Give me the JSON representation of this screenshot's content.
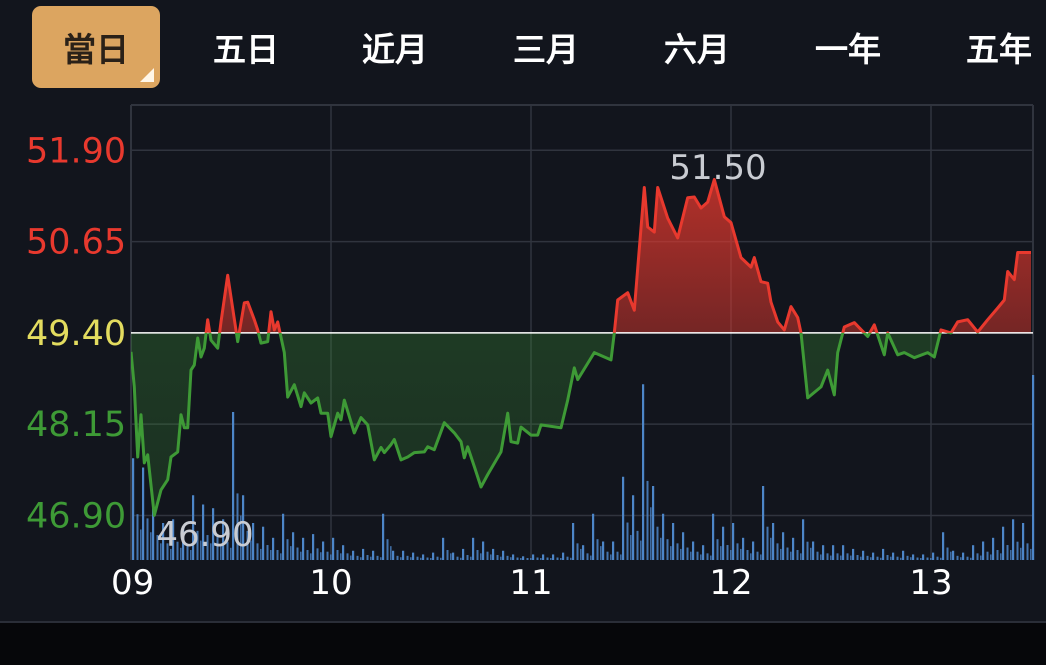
{
  "tabs": [
    {
      "label": "當日",
      "active": true
    },
    {
      "label": "五日",
      "active": false
    },
    {
      "label": "近月",
      "active": false
    },
    {
      "label": "三月",
      "active": false
    },
    {
      "label": "六月",
      "active": false
    },
    {
      "label": "一年",
      "active": false
    },
    {
      "label": "五年",
      "active": false
    }
  ],
  "colors": {
    "up": "#e8392e",
    "down": "#3e9a36",
    "reference": "#e3dc5f",
    "volume": "#4d86c8",
    "active_tab": "#dca560",
    "background": "#12151d",
    "grid": "#30343e"
  },
  "chart_data": {
    "type": "line",
    "x_axis": {
      "ticks": [
        "09",
        "10",
        "11",
        "12",
        "13"
      ],
      "range": [
        "09:00",
        "13:30"
      ]
    },
    "y_axis": {
      "ticks": [
        "51.90",
        "50.65",
        "49.40",
        "48.15",
        "46.90"
      ],
      "range": [
        46.29,
        52.52
      ],
      "reference": 49.4
    },
    "grid": true,
    "high_label": "51.50",
    "low_label": "46.90",
    "price": [
      [
        "09:00",
        49.14
      ],
      [
        "09:01",
        48.66
      ],
      [
        "09:02",
        47.7
      ],
      [
        "09:03",
        48.28
      ],
      [
        "09:04",
        47.62
      ],
      [
        "09:05",
        47.73
      ],
      [
        "09:07",
        46.9
      ],
      [
        "09:09",
        47.25
      ],
      [
        "09:11",
        47.39
      ],
      [
        "09:12",
        47.7
      ],
      [
        "09:14",
        47.77
      ],
      [
        "09:15",
        48.28
      ],
      [
        "09:16",
        48.1
      ],
      [
        "09:17",
        48.1
      ],
      [
        "09:18",
        48.89
      ],
      [
        "09:19",
        48.96
      ],
      [
        "09:20",
        49.33
      ],
      [
        "09:21",
        49.07
      ],
      [
        "09:22",
        49.19
      ],
      [
        "09:23",
        49.58
      ],
      [
        "09:24",
        49.3
      ],
      [
        "09:26",
        49.19
      ],
      [
        "09:27",
        49.55
      ],
      [
        "09:29",
        50.19
      ],
      [
        "09:32",
        49.28
      ],
      [
        "09:34",
        49.81
      ],
      [
        "09:35",
        49.82
      ],
      [
        "09:37",
        49.58
      ],
      [
        "09:38",
        49.44
      ],
      [
        "09:39",
        49.26
      ],
      [
        "09:41",
        49.28
      ],
      [
        "09:42",
        49.69
      ],
      [
        "09:43",
        49.44
      ],
      [
        "09:44",
        49.55
      ],
      [
        "09:46",
        49.13
      ],
      [
        "09:47",
        48.52
      ],
      [
        "09:49",
        48.69
      ],
      [
        "09:51",
        48.39
      ],
      [
        "09:52",
        48.58
      ],
      [
        "09:54",
        48.44
      ],
      [
        "09:56",
        48.51
      ],
      [
        "09:57",
        48.3
      ],
      [
        "09:59",
        48.3
      ],
      [
        "10:00",
        47.98
      ],
      [
        "10:02",
        48.3
      ],
      [
        "10:03",
        48.21
      ],
      [
        "10:04",
        48.48
      ],
      [
        "10:07",
        48.03
      ],
      [
        "10:09",
        48.24
      ],
      [
        "10:11",
        48.14
      ],
      [
        "10:13",
        47.66
      ],
      [
        "10:15",
        47.83
      ],
      [
        "10:16",
        47.76
      ],
      [
        "10:18",
        47.87
      ],
      [
        "10:19",
        47.94
      ],
      [
        "10:21",
        47.66
      ],
      [
        "10:23",
        47.7
      ],
      [
        "10:25",
        47.76
      ],
      [
        "10:28",
        47.77
      ],
      [
        "10:29",
        47.84
      ],
      [
        "10:31",
        47.8
      ],
      [
        "10:34",
        48.17
      ],
      [
        "10:37",
        48.03
      ],
      [
        "10:39",
        47.91
      ],
      [
        "10:40",
        47.69
      ],
      [
        "10:41",
        47.84
      ],
      [
        "10:43",
        47.57
      ],
      [
        "10:45",
        47.29
      ],
      [
        "10:47",
        47.46
      ],
      [
        "10:51",
        47.77
      ],
      [
        "10:53",
        48.3
      ],
      [
        "10:54",
        47.91
      ],
      [
        "10:56",
        47.89
      ],
      [
        "10:57",
        48.11
      ],
      [
        "11:00",
        48.0
      ],
      [
        "11:02",
        48.0
      ],
      [
        "11:03",
        48.14
      ],
      [
        "11:09",
        48.1
      ],
      [
        "11:11",
        48.48
      ],
      [
        "11:13",
        48.92
      ],
      [
        "11:14",
        48.76
      ],
      [
        "11:19",
        49.13
      ],
      [
        "11:24",
        49.03
      ],
      [
        "11:25",
        49.4
      ],
      [
        "11:26",
        49.85
      ],
      [
        "11:29",
        49.95
      ],
      [
        "11:31",
        49.71
      ],
      [
        "11:34",
        51.39
      ],
      [
        "11:35",
        50.85
      ],
      [
        "11:37",
        50.78
      ],
      [
        "11:38",
        51.39
      ],
      [
        "11:41",
        50.97
      ],
      [
        "11:44",
        50.7
      ],
      [
        "11:47",
        51.25
      ],
      [
        "11:49",
        51.26
      ],
      [
        "11:51",
        51.11
      ],
      [
        "11:53",
        51.19
      ],
      [
        "11:55",
        51.5
      ],
      [
        "11:58",
        50.99
      ],
      [
        "12:00",
        50.91
      ],
      [
        "12:03",
        50.43
      ],
      [
        "12:06",
        50.3
      ],
      [
        "12:07",
        50.43
      ],
      [
        "12:09",
        50.1
      ],
      [
        "12:11",
        50.08
      ],
      [
        "12:12",
        49.82
      ],
      [
        "12:14",
        49.55
      ],
      [
        "12:16",
        49.44
      ],
      [
        "12:18",
        49.76
      ],
      [
        "12:20",
        49.61
      ],
      [
        "12:21",
        49.4
      ],
      [
        "12:23",
        48.51
      ],
      [
        "12:27",
        48.66
      ],
      [
        "12:29",
        48.89
      ],
      [
        "12:31",
        48.55
      ],
      [
        "12:32",
        49.13
      ],
      [
        "12:34",
        49.48
      ],
      [
        "12:37",
        49.54
      ],
      [
        "12:41",
        49.35
      ],
      [
        "12:43",
        49.51
      ],
      [
        "12:46",
        49.1
      ],
      [
        "12:47",
        49.4
      ],
      [
        "12:50",
        49.1
      ],
      [
        "12:52",
        49.13
      ],
      [
        "12:55",
        49.06
      ],
      [
        "12:59",
        49.13
      ],
      [
        "13:01",
        49.07
      ],
      [
        "13:03",
        49.44
      ],
      [
        "13:06",
        49.4
      ],
      [
        "13:08",
        49.55
      ],
      [
        "13:11",
        49.58
      ],
      [
        "13:14",
        49.41
      ],
      [
        "13:17",
        49.58
      ],
      [
        "13:20",
        49.74
      ],
      [
        "13:22",
        49.85
      ],
      [
        "13:23",
        50.24
      ],
      [
        "13:25",
        50.13
      ],
      [
        "13:26",
        50.5
      ],
      [
        "13:30",
        50.5
      ]
    ],
    "volume_interval_minutes": 3,
    "volume_relative": [
      55,
      50,
      30,
      20,
      22,
      18,
      35,
      30,
      28,
      22,
      80,
      35,
      20,
      18,
      12,
      25,
      15,
      12,
      14,
      10,
      12,
      8,
      5,
      6,
      5,
      25,
      5,
      5,
      4,
      3,
      4,
      12,
      4,
      6,
      12,
      10,
      6,
      5,
      3,
      2,
      3,
      3,
      3,
      4,
      20,
      8,
      25,
      10,
      10,
      45,
      35,
      95,
      40,
      25,
      20,
      15,
      10,
      8,
      25,
      18,
      20,
      12,
      10,
      40,
      20,
      15,
      12,
      22,
      10,
      8,
      8,
      8,
      6,
      5,
      4,
      6,
      4,
      5,
      3,
      3,
      4,
      15,
      5,
      4,
      8,
      10,
      12,
      18,
      22,
      20,
      100
    ]
  }
}
